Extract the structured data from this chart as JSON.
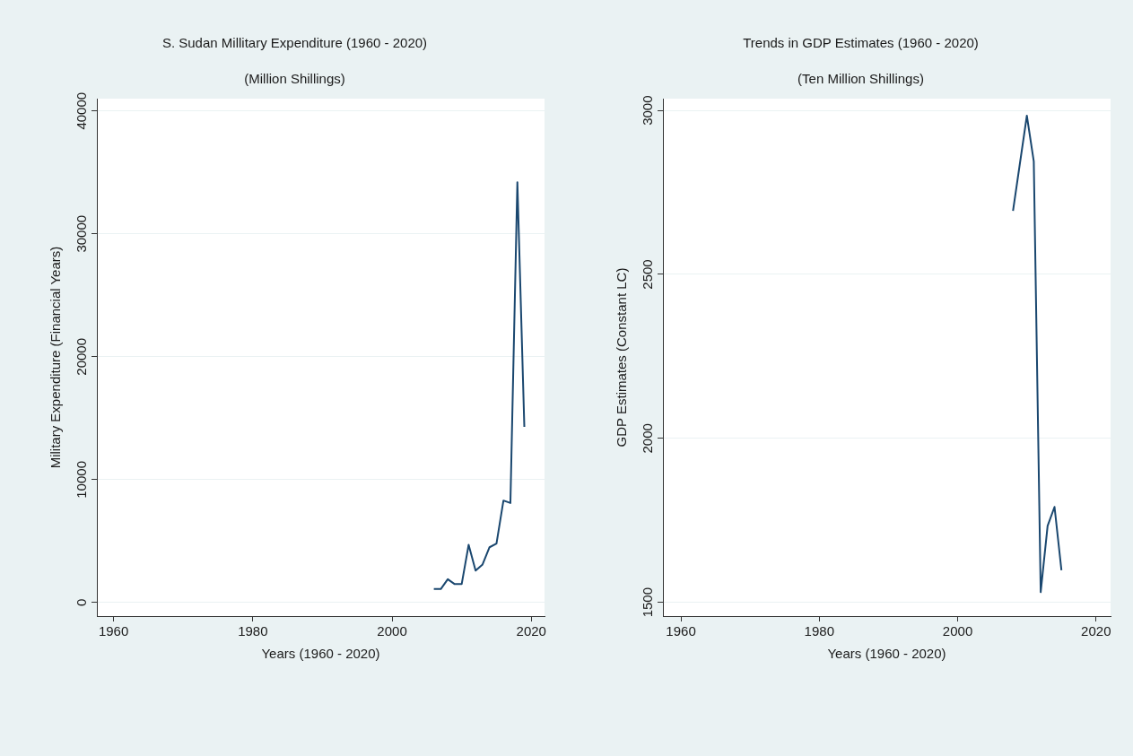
{
  "chart_data": [
    {
      "type": "line",
      "title": "S. Sudan Millitary Expenditure (1960 - 2020)",
      "subtitle": "(Million Shillings)",
      "xlabel": "Years (1960 - 2020)",
      "ylabel": "Military Expenditure (Financial Years)",
      "x": [
        2006,
        2007,
        2008,
        2009,
        2010,
        2011,
        2012,
        2013,
        2014,
        2015,
        2016,
        2017,
        2018,
        2019
      ],
      "series": [
        {
          "color": "#1a476f",
          "values": [
            1100,
            1100,
            1900,
            1500,
            1500,
            4700,
            2600,
            3100,
            4500,
            4800,
            8300,
            8100,
            34200,
            14300
          ]
        }
      ],
      "xlim": [
        1957.6,
        2021.9
      ],
      "xticks": [
        1960,
        1980,
        2000,
        2020
      ],
      "ylim": [
        -1100,
        41000
      ],
      "yticks": [
        0,
        10000,
        20000,
        30000,
        40000
      ],
      "grid": "y",
      "legend": false,
      "marker": "none",
      "line_style": "solid"
    },
    {
      "type": "line",
      "title": "Trends in GDP Estimates (1960 - 2020)",
      "subtitle": "(Ten Million Shillings)",
      "xlabel": "Years (1960 - 2020)",
      "ylabel": "GDP Estimates (Constant LC)",
      "x": [
        2008,
        2010,
        2011,
        2012,
        2013,
        2014,
        2015
      ],
      "series": [
        {
          "color": "#1a476f",
          "values": [
            2694,
            2984,
            2845,
            1531,
            1733,
            1791,
            1598
          ]
        }
      ],
      "xlim": [
        1957.4,
        2022.1
      ],
      "xticks": [
        1960,
        1980,
        2000,
        2020
      ],
      "ylim": [
        1458,
        3036
      ],
      "yticks": [
        1500,
        2000,
        2500,
        3000
      ],
      "grid": "y",
      "legend": false,
      "marker": "none",
      "line_style": "solid"
    }
  ]
}
